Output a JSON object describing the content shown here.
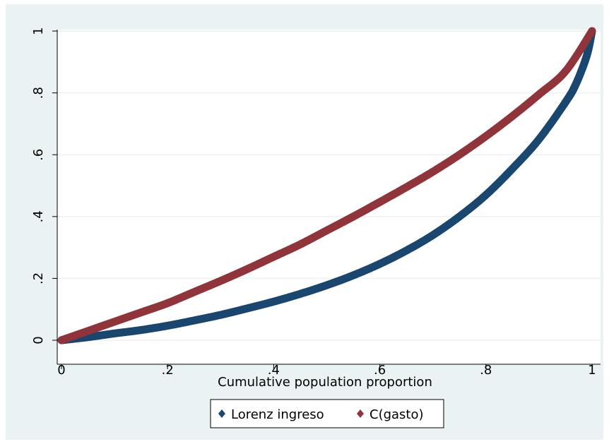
{
  "chart_data": {
    "type": "scatter",
    "title": "",
    "xlabel": "Cumulative population proportion",
    "ylabel": "",
    "xlim": [
      0,
      1
    ],
    "ylim": [
      0,
      1
    ],
    "x_ticks": [
      {
        "value": 0,
        "label": "0"
      },
      {
        "value": 0.2,
        "label": ".2"
      },
      {
        "value": 0.4,
        "label": ".4"
      },
      {
        "value": 0.6,
        "label": ".6"
      },
      {
        "value": 0.8,
        "label": ".8"
      },
      {
        "value": 1,
        "label": "1"
      }
    ],
    "y_ticks": [
      {
        "value": 0,
        "label": "0"
      },
      {
        "value": 0.2,
        "label": ".2"
      },
      {
        "value": 0.4,
        "label": ".4"
      },
      {
        "value": 0.6,
        "label": ".6"
      },
      {
        "value": 0.8,
        "label": ".8"
      },
      {
        "value": 1,
        "label": "1"
      }
    ],
    "grid": true,
    "legend_position": "bottom",
    "series": [
      {
        "name": "Lorenz ingreso",
        "color": "#1a476f",
        "x": [
          0,
          0.05,
          0.1,
          0.15,
          0.2,
          0.25,
          0.3,
          0.35,
          0.4,
          0.45,
          0.5,
          0.55,
          0.6,
          0.65,
          0.7,
          0.75,
          0.8,
          0.85,
          0.9,
          0.95,
          0.97,
          0.99,
          1.0
        ],
        "values": [
          0,
          0.01,
          0.022,
          0.033,
          0.047,
          0.064,
          0.082,
          0.103,
          0.125,
          0.15,
          0.178,
          0.21,
          0.247,
          0.29,
          0.34,
          0.4,
          0.47,
          0.555,
          0.65,
          0.77,
          0.83,
          0.92,
          1.0
        ]
      },
      {
        "name": "C(gasto)",
        "color": "#90353b",
        "x": [
          0,
          0.05,
          0.1,
          0.15,
          0.2,
          0.25,
          0.3,
          0.35,
          0.4,
          0.45,
          0.5,
          0.55,
          0.6,
          0.65,
          0.7,
          0.75,
          0.8,
          0.85,
          0.9,
          0.95,
          1.0
        ],
        "values": [
          0,
          0.03,
          0.06,
          0.09,
          0.12,
          0.156,
          0.192,
          0.23,
          0.27,
          0.31,
          0.355,
          0.4,
          0.447,
          0.495,
          0.545,
          0.6,
          0.66,
          0.725,
          0.795,
          0.87,
          1.0
        ]
      }
    ]
  }
}
